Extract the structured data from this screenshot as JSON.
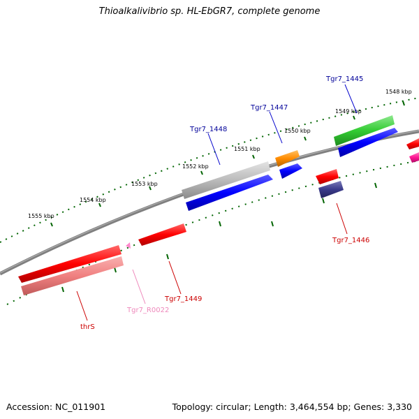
{
  "title": "Thioalkalivibrio sp. HL-EbGR7, complete genome",
  "footer": {
    "accession": "Accession: NC_011901",
    "summary": "Topology: circular; Length: 3,464,554 bp; Genes: 3,330"
  },
  "ruler_ticks": [
    "1548 kbp",
    "1549 kbp",
    "1550 kbp",
    "1551 kbp",
    "1552 kbp",
    "1553 kbp",
    "1554 kbp",
    "1555 kbp"
  ],
  "genes": [
    {
      "name": "Tgr7_1445",
      "color": "#000099"
    },
    {
      "name": "Tgr7_1447",
      "color": "#000099"
    },
    {
      "name": "Tgr7_1448",
      "color": "#000099"
    },
    {
      "name": "Tgr7_1446",
      "color": "#cc0000"
    },
    {
      "name": "Tgr7_1449",
      "color": "#cc0000"
    },
    {
      "name": "Tgr7_R0022",
      "color": "#ee88bb"
    },
    {
      "name": "thrS",
      "color": "#cc0000"
    }
  ],
  "colors": {
    "backbone": "#808080",
    "tick": "#006400",
    "red": "#ff0000",
    "light_red": "#f08080",
    "blue": "#0000ff",
    "gray": "#bbbbbb",
    "orange": "#ff8c00",
    "green": "#33cc33",
    "navy": "#3a3a8a",
    "pink": "#ff1493"
  }
}
